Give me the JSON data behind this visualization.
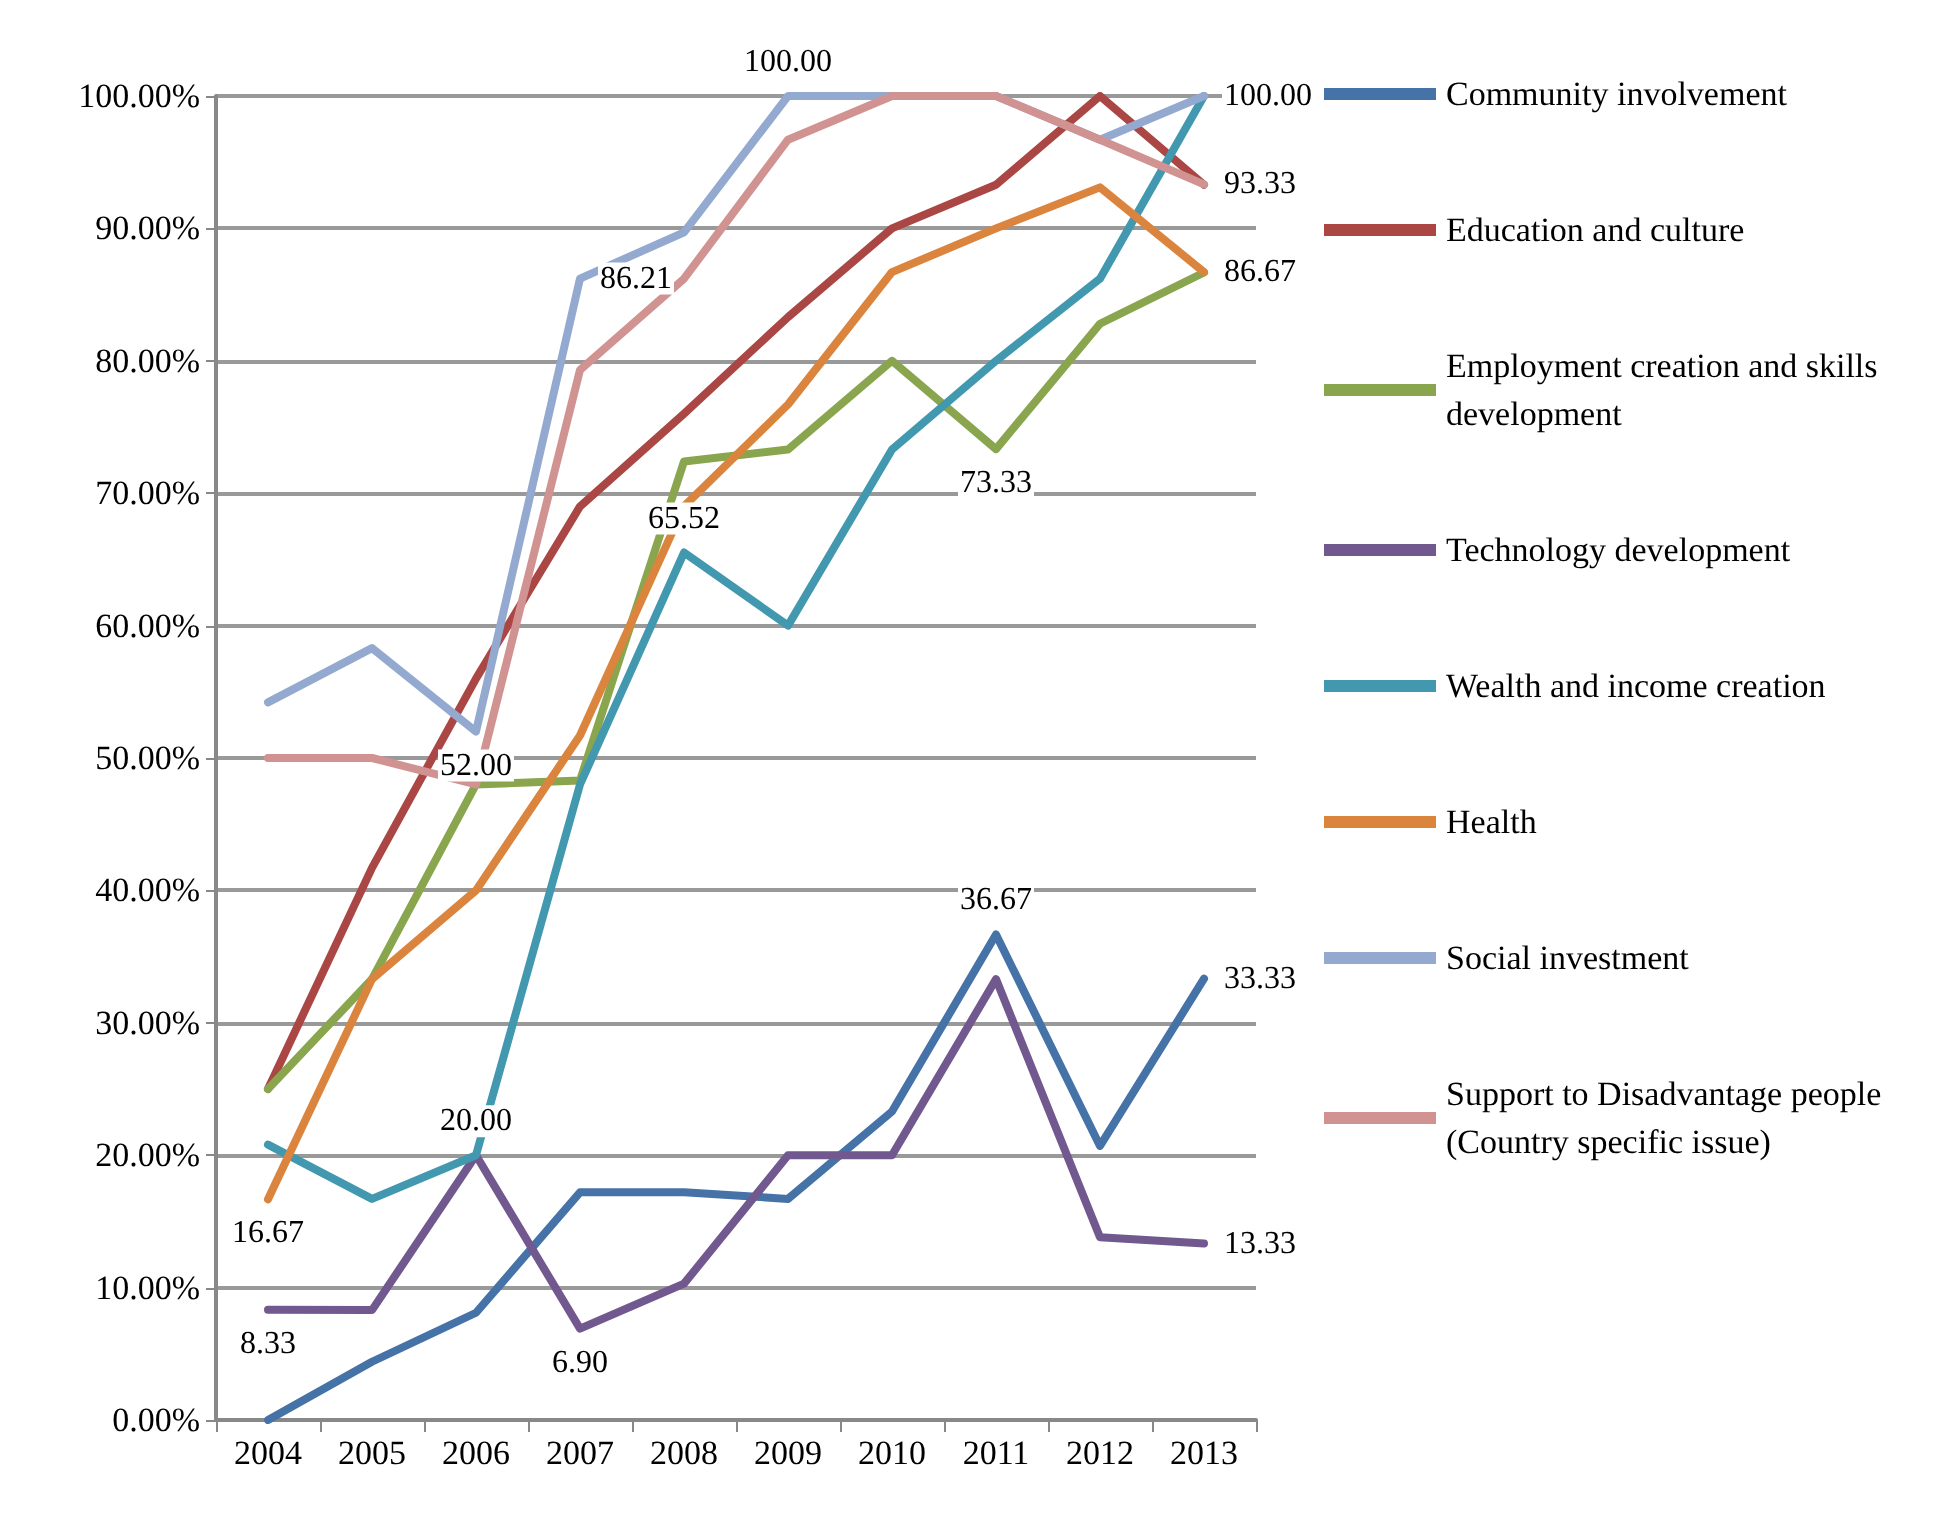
{
  "chart_data": {
    "type": "line",
    "categories": [
      "2004",
      "2005",
      "2006",
      "2007",
      "2008",
      "2009",
      "2010",
      "2011",
      "2012",
      "2013"
    ],
    "ylim": [
      0,
      100
    ],
    "yticks": [
      {
        "value": 0,
        "label": "0.00%"
      },
      {
        "value": 10,
        "label": "10.00%"
      },
      {
        "value": 20,
        "label": "20.00%"
      },
      {
        "value": 30,
        "label": "30.00%"
      },
      {
        "value": 40,
        "label": "40.00%"
      },
      {
        "value": 50,
        "label": "50.00%"
      },
      {
        "value": 60,
        "label": "60.00%"
      },
      {
        "value": 70,
        "label": "70.00%"
      },
      {
        "value": 80,
        "label": "80.00%"
      },
      {
        "value": 90,
        "label": "90.00%"
      },
      {
        "value": 100,
        "label": "100.00%"
      }
    ],
    "grid": "y",
    "legend": "right",
    "marker": "none",
    "line_style": "solid",
    "series": [
      {
        "name": "Community involvement",
        "color": "#4572a7",
        "values": [
          0,
          4.4,
          8.1,
          17.2,
          17.2,
          16.7,
          23.3,
          36.67,
          20.7,
          33.33
        ],
        "value_labels": [
          null,
          null,
          null,
          null,
          null,
          null,
          null,
          "36.67",
          null,
          "33.33"
        ]
      },
      {
        "name": "Education and culture",
        "color": "#aa4643",
        "values": [
          25,
          41.7,
          56,
          69,
          76,
          83.3,
          90,
          93.3,
          100,
          93.3
        ]
      },
      {
        "name": "Employment creation and skills development",
        "color": "#89a54e",
        "values": [
          25,
          33.3,
          48,
          48.3,
          72.4,
          73.3,
          80,
          73.33,
          82.8,
          86.67
        ],
        "value_labels": [
          null,
          null,
          null,
          null,
          null,
          null,
          null,
          "73.33",
          null,
          "86.67"
        ]
      },
      {
        "name": "Technology development",
        "color": "#71588f",
        "values": [
          8.33,
          8.3,
          20,
          6.9,
          10.3,
          20,
          20,
          33.3,
          13.8,
          13.33
        ],
        "value_labels": [
          "8.33",
          null,
          "20.00",
          "6.90",
          null,
          null,
          null,
          null,
          null,
          "13.33"
        ]
      },
      {
        "name": "Wealth and income creation",
        "color": "#4198af",
        "values": [
          20.8,
          16.7,
          20,
          48,
          65.52,
          60,
          73.3,
          80,
          86.2,
          100
        ],
        "value_labels": [
          null,
          null,
          null,
          null,
          "65.52",
          null,
          null,
          null,
          null,
          "100.00"
        ]
      },
      {
        "name": "Health",
        "color": "#db843d",
        "values": [
          16.67,
          33.3,
          40,
          51.7,
          69,
          76.7,
          86.7,
          90,
          93.1,
          86.7
        ],
        "value_labels": [
          "16.67",
          null,
          null,
          null,
          null,
          null,
          null,
          null,
          null,
          null
        ]
      },
      {
        "name": "Social investment",
        "color": "#93a9cf",
        "values": [
          54.2,
          58.3,
          52,
          86.21,
          89.7,
          100,
          100,
          100,
          96.7,
          100
        ],
        "value_labels": [
          null,
          null,
          "52.00",
          "86.21",
          null,
          "100.00",
          null,
          null,
          null,
          null
        ]
      },
      {
        "name": "Support to Disadvantage people (Country specific issue)",
        "color": "#d19392",
        "values": [
          50,
          50,
          48,
          79.3,
          86.2,
          96.7,
          100,
          100,
          96.7,
          93.33
        ],
        "value_labels": [
          null,
          null,
          null,
          null,
          null,
          null,
          null,
          null,
          null,
          "93.33"
        ]
      }
    ]
  }
}
